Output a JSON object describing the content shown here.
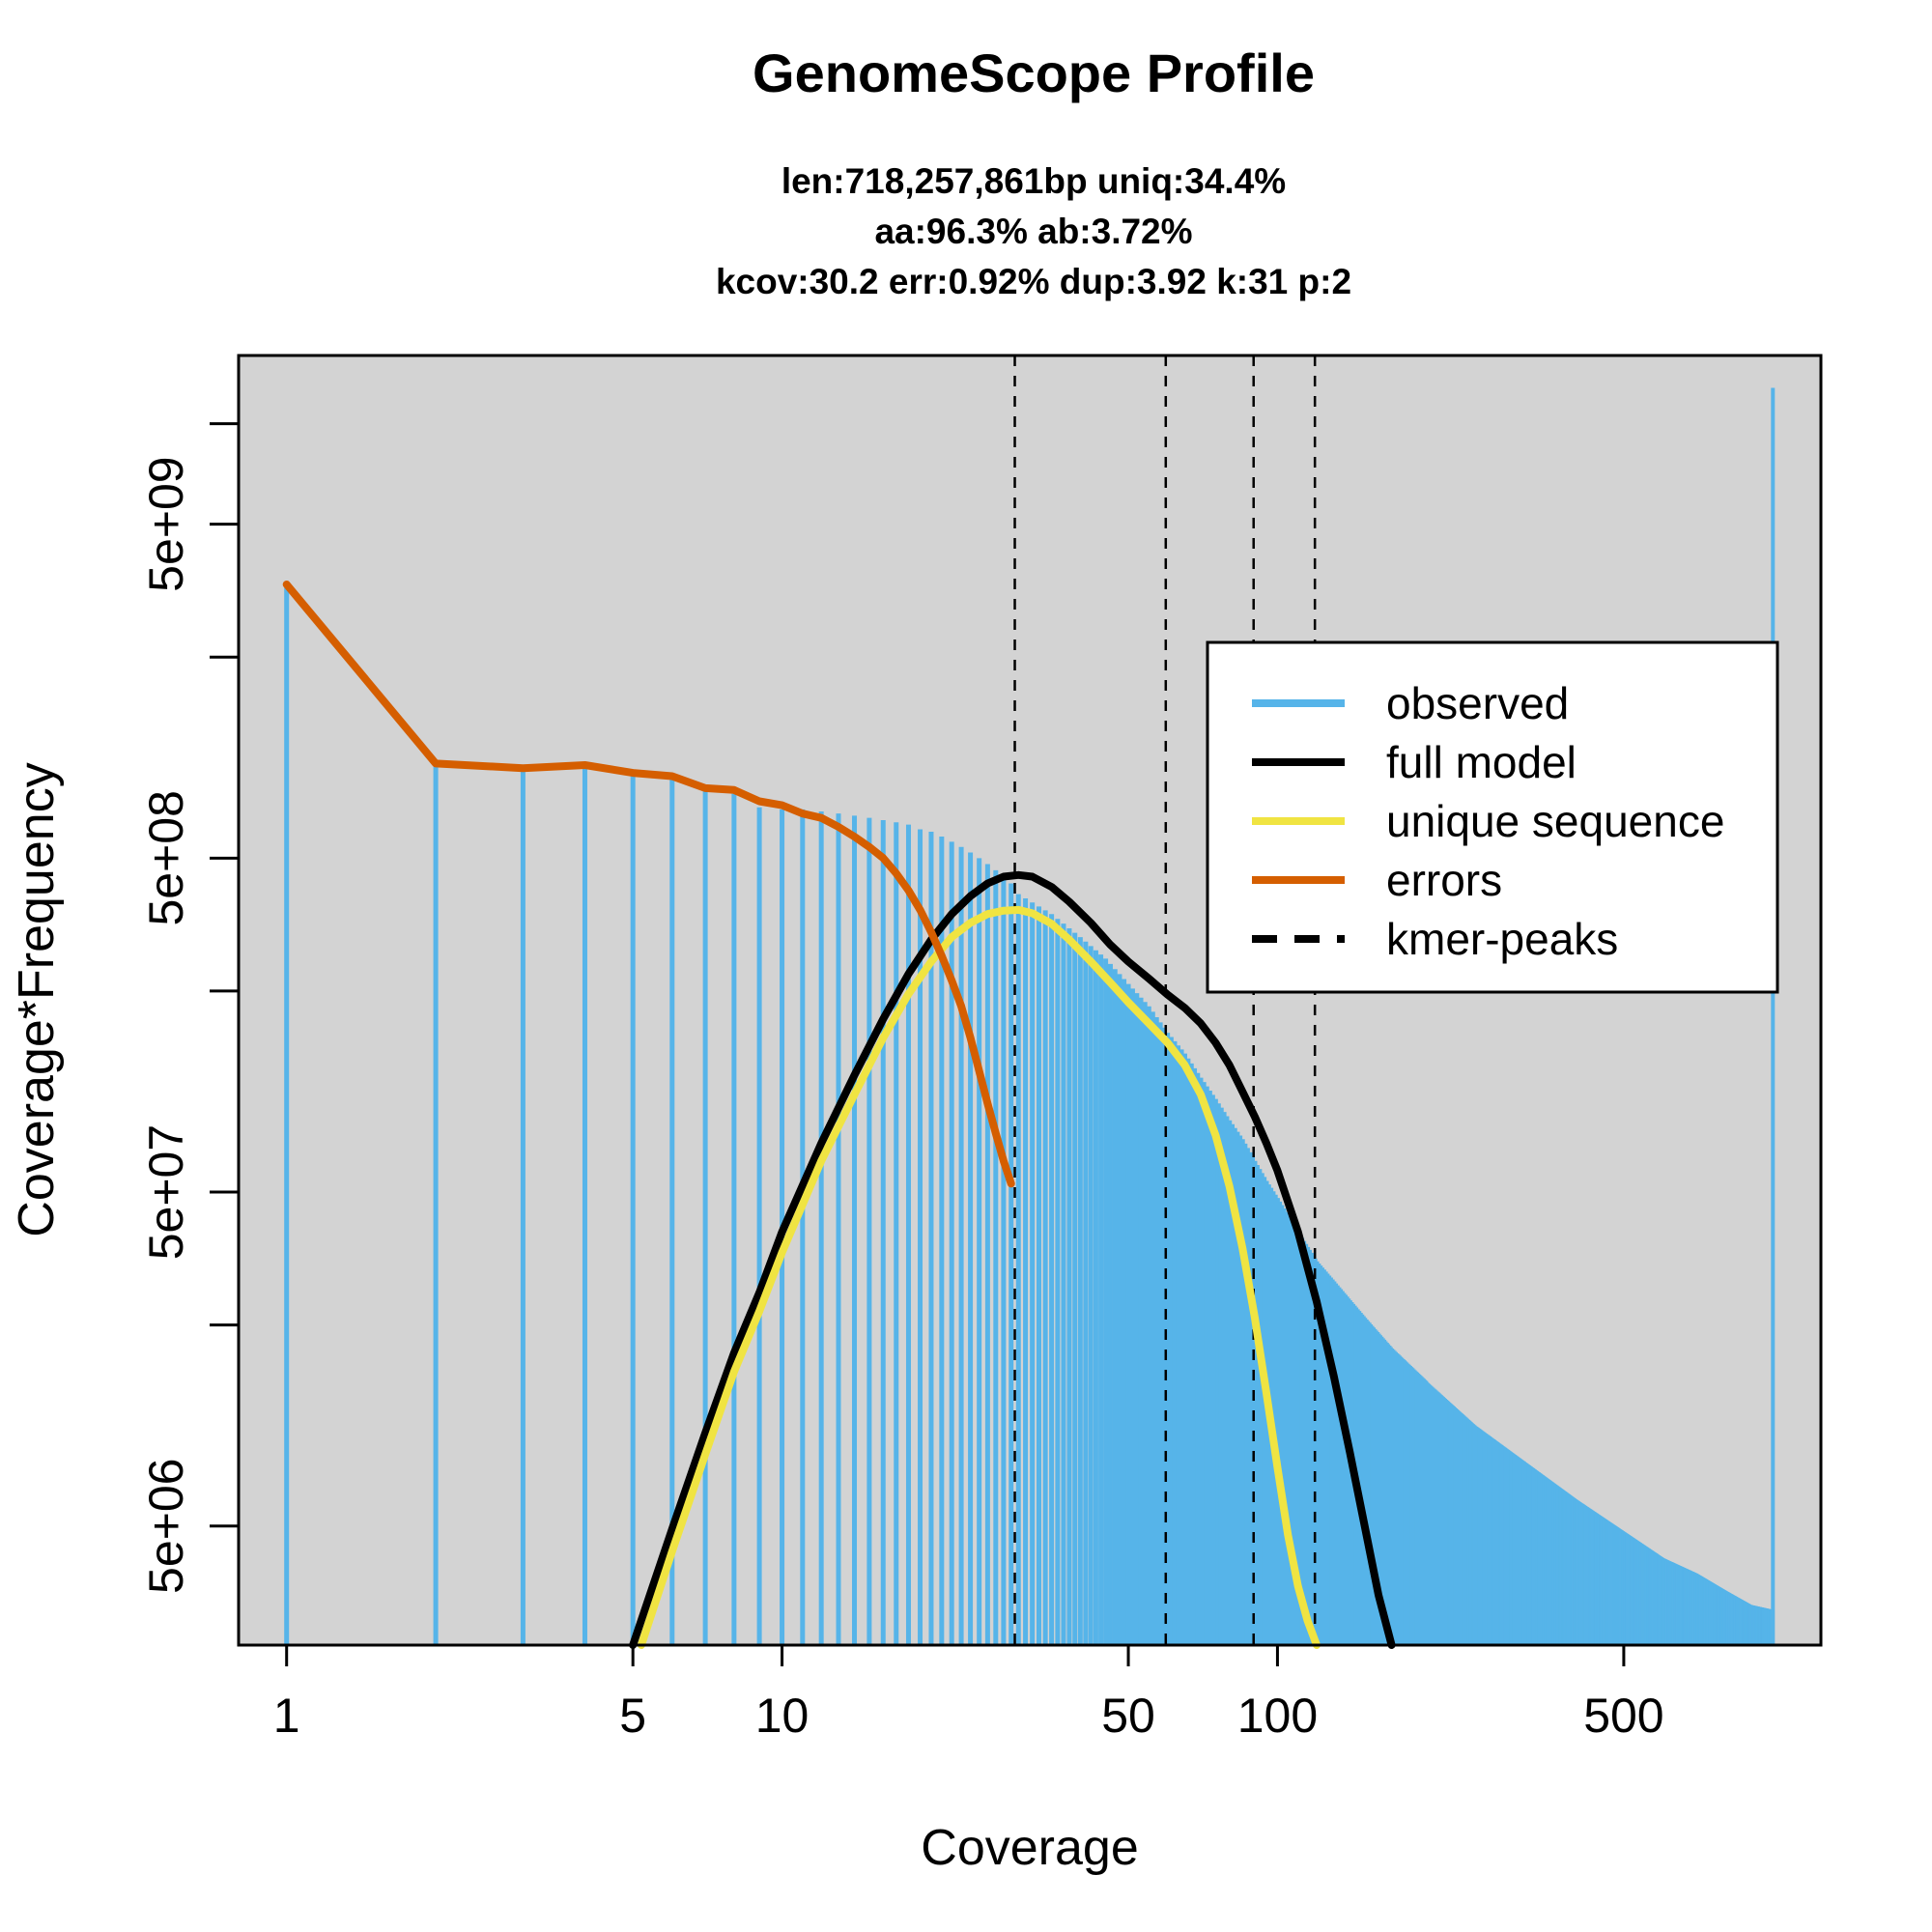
{
  "chart_data": {
    "type": "bar",
    "title": "GenomeScope Profile",
    "subtitle_lines": [
      "len:718,257,861bp uniq:34.4%",
      "aa:96.3% ab:3.72%",
      "kcov:30.2 err:0.92%  dup:3.92  k:31 p:2"
    ],
    "xlabel": "Coverage",
    "ylabel": "Coverage*Frequency",
    "x_scale": "log",
    "y_scale": "log",
    "xlim": [
      0.8,
      1250
    ],
    "ylim": [
      2200000,
      16000000000
    ],
    "x_ticks": [
      1,
      5,
      10,
      50,
      100,
      500
    ],
    "x_tick_labels": [
      "1",
      "5",
      "10",
      "50",
      "100",
      "500"
    ],
    "y_ticks": [
      2000000,
      5000000,
      20000000,
      50000000,
      200000000,
      500000000,
      2000000000,
      5000000000,
      10000000000
    ],
    "y_tick_labels": [
      "",
      "5e+06",
      "",
      "5e+07",
      "",
      "5e+08",
      "",
      "5e+09",
      ""
    ],
    "grid": false,
    "legend_position": "top-right",
    "observed": {
      "name": "observed",
      "color": "#56B4E9",
      "x": [
        1,
        2,
        3,
        4,
        5,
        6,
        7,
        8,
        9,
        10,
        11,
        12,
        13,
        14,
        15,
        16,
        17,
        18,
        19,
        20,
        21,
        22,
        23,
        24,
        25,
        26,
        27,
        28,
        29,
        30,
        35,
        40,
        45,
        50,
        55,
        60,
        65,
        70,
        75,
        80,
        85,
        90,
        95,
        100,
        110,
        120,
        130,
        150,
        170,
        200,
        250,
        300,
        400,
        500,
        600,
        700,
        800,
        900,
        1000
      ],
      "y": [
        3300000000,
        960000000,
        930000000,
        950000000,
        900000000,
        880000000,
        810000000,
        780000000,
        710000000,
        700000000,
        700000000,
        690000000,
        680000000,
        670000000,
        660000000,
        650000000,
        640000000,
        630000000,
        610000000,
        600000000,
        580000000,
        560000000,
        540000000,
        520000000,
        500000000,
        480000000,
        460000000,
        440000000,
        420000000,
        390000000,
        340000000,
        290000000,
        250000000,
        210000000,
        180000000,
        150000000,
        130000000,
        110000000,
        95000000,
        82000000,
        72000000,
        62000000,
        54000000,
        48000000,
        38000000,
        31000000,
        27000000,
        21000000,
        17000000,
        13500000,
        10000000,
        8200000,
        6000000,
        4800000,
        4000000,
        3600000,
        3200000,
        2900000,
        2800000
      ],
      "last_bin": {
        "x": 1000,
        "y": 12800000000
      }
    },
    "series": [
      {
        "name": "full model",
        "color": "#000000",
        "x": [
          5,
          6,
          7,
          8,
          9,
          10,
          12,
          14,
          16,
          18,
          20,
          22,
          24,
          26,
          28,
          30,
          32,
          35,
          38,
          42,
          46,
          50,
          55,
          60,
          65,
          70,
          75,
          80,
          85,
          90,
          95,
          100,
          110,
          120,
          130,
          140,
          150,
          160,
          170
        ],
        "y": [
          2200000,
          4900000,
          9500000,
          16500000,
          25000000,
          38000000,
          70000000,
          112000000,
          165000000,
          225000000,
          285000000,
          340000000,
          385000000,
          420000000,
          440000000,
          445000000,
          440000000,
          410000000,
          370000000,
          320000000,
          275000000,
          245000000,
          218000000,
          195000000,
          178000000,
          160000000,
          140000000,
          120000000,
          100000000,
          84000000,
          70000000,
          58000000,
          38000000,
          23500000,
          14000000,
          8300000,
          5000000,
          3100000,
          2200000
        ]
      },
      {
        "name": "unique sequence",
        "color": "#F0E442",
        "x": [
          5.2,
          6,
          7,
          8,
          9,
          10,
          12,
          14,
          16,
          18,
          20,
          22,
          24,
          26,
          28,
          30,
          32,
          35,
          38,
          42,
          46,
          50,
          55,
          60,
          65,
          70,
          75,
          80,
          85,
          90,
          95,
          100,
          105,
          110,
          115,
          120
        ],
        "y": [
          2200000,
          4200000,
          8200000,
          14500000,
          22000000,
          33000000,
          62000000,
          98000000,
          145000000,
          196000000,
          245000000,
          290000000,
          320000000,
          340000000,
          348000000,
          350000000,
          342000000,
          318000000,
          285000000,
          245000000,
          212000000,
          185000000,
          160000000,
          140000000,
          120000000,
          98000000,
          74000000,
          52000000,
          34000000,
          21000000,
          12500000,
          7500000,
          4700000,
          3300000,
          2600000,
          2200000
        ]
      },
      {
        "name": "errors",
        "color": "#D55E00",
        "x": [
          1,
          2,
          3,
          4,
          5,
          6,
          7,
          8,
          9,
          10,
          11,
          12,
          13,
          14,
          15,
          16,
          17,
          18,
          19,
          20,
          21,
          22,
          23,
          24,
          25,
          26,
          27,
          28,
          29
        ],
        "y": [
          3300000000,
          960000000,
          930000000,
          950000000,
          900000000,
          880000000,
          810000000,
          800000000,
          740000000,
          720000000,
          680000000,
          660000000,
          620000000,
          580000000,
          540000000,
          500000000,
          450000000,
          400000000,
          350000000,
          300000000,
          255000000,
          215000000,
          180000000,
          145000000,
          115000000,
          92000000,
          75000000,
          62000000,
          53000000
        ]
      }
    ],
    "kmer_peaks": {
      "name": "kmer-peaks",
      "color": "#000000",
      "x": [
        29.5,
        59.5,
        89.5,
        119
      ]
    },
    "legend": [
      {
        "label": "observed",
        "color": "#56B4E9",
        "style": "solid"
      },
      {
        "label": "full model",
        "color": "#000000",
        "style": "solid"
      },
      {
        "label": "unique sequence",
        "color": "#F0E442",
        "style": "solid"
      },
      {
        "label": "errors",
        "color": "#D55E00",
        "style": "solid"
      },
      {
        "label": "kmer-peaks",
        "color": "#000000",
        "style": "dashed"
      }
    ],
    "panel_color": "#D3D3D3"
  }
}
